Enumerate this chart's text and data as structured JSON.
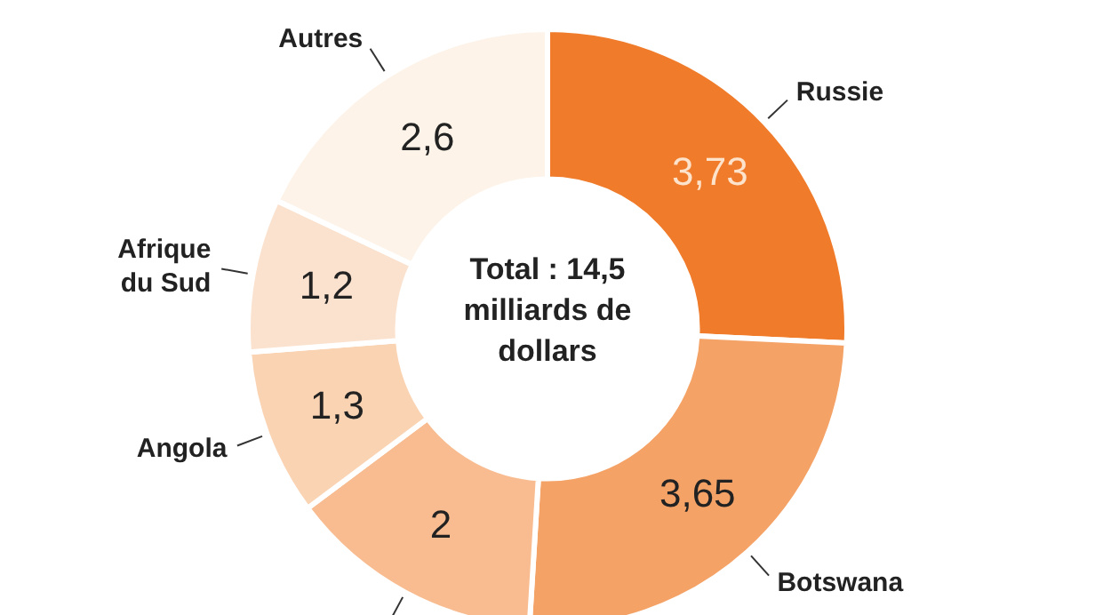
{
  "chart_data": {
    "type": "donut",
    "categories": [
      "Russie",
      "Botswana",
      null,
      "Angola",
      "Afrique du Sud",
      "Autres"
    ],
    "values": [
      3.73,
      3.65,
      2,
      1.3,
      1.2,
      2.6
    ],
    "value_labels": [
      "3,73",
      "3,65",
      "2",
      "1,3",
      "1,2",
      "2,6"
    ],
    "colors": [
      "#f07b2a",
      "#f5a266",
      "#f8bc90",
      "#fad3b3",
      "#fbe2cf",
      "#fdf3e9"
    ],
    "annotations": [
      "Total : 14,5 milliards de dollars"
    ],
    "legend": false
  }
}
